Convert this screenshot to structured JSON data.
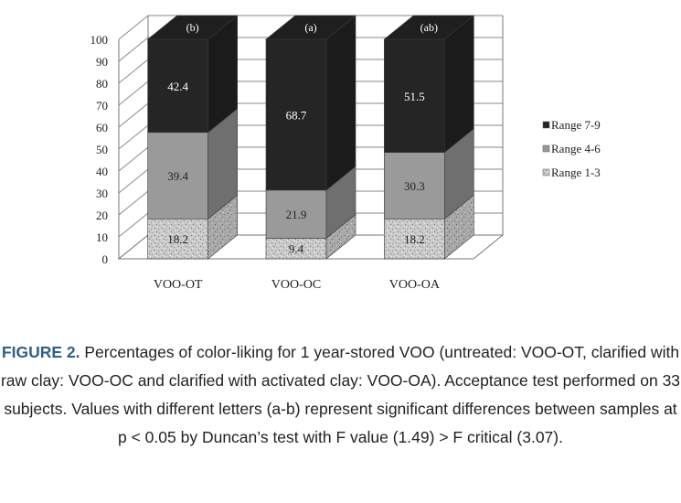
{
  "chart_data": {
    "type": "bar",
    "stacked": true,
    "three_d": true,
    "categories": [
      "VOO-OT",
      "VOO-OC",
      "VOO-OA"
    ],
    "series": [
      {
        "name": "Range 1-3",
        "values": [
          18.2,
          9.4,
          18.2
        ],
        "color": "#c4c4c4",
        "pattern": "speckled"
      },
      {
        "name": "Range 4-6",
        "values": [
          39.4,
          21.9,
          30.3
        ],
        "color": "#9a9a9a"
      },
      {
        "name": "Range 7-9",
        "values": [
          42.4,
          68.7,
          51.5
        ],
        "color": "#252525"
      }
    ],
    "data_labels": [
      [
        "18.2",
        "39.4",
        "42.4"
      ],
      [
        "9.4",
        "21.9",
        "68.7"
      ],
      [
        "18.2",
        "30.3",
        "51.5"
      ]
    ],
    "significance_letters": [
      "(b)",
      "(a)",
      "(ab)"
    ],
    "ylim": [
      0,
      100
    ],
    "yticks": [
      0,
      10,
      20,
      30,
      40,
      50,
      60,
      70,
      80,
      90,
      100
    ],
    "grid": true,
    "legend_position": "right",
    "legend_order": [
      "Range 7-9",
      "Range 4-6",
      "Range 1-3"
    ]
  },
  "caption": {
    "label": "FIGURE 2.",
    "text": "Percentages of color-liking for 1 year-stored VOO (untreated: VOO-OT, clarified with raw clay: VOO-OC and clarified with activated clay: VOO-OA). Acceptance test performed on 33 subjects. Values with different letters (a-b) represent significant differences between samples at p < 0.05 by Duncan’s test with F value (1.49) > F critical (3.07)."
  }
}
